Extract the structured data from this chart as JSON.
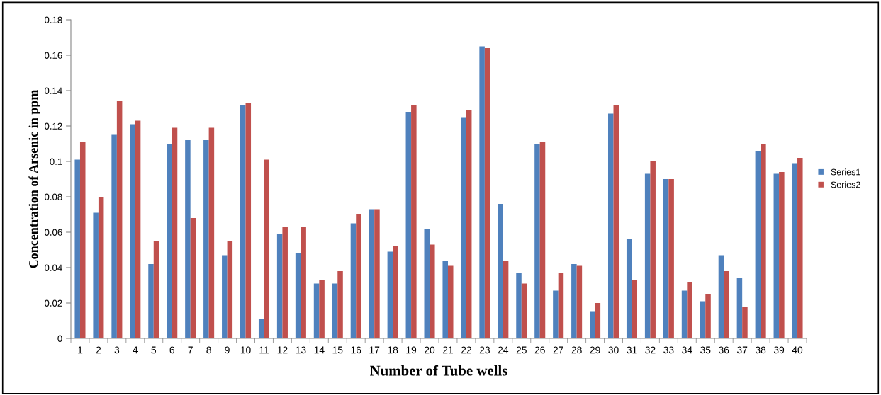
{
  "chart_data": {
    "type": "bar",
    "xlabel": "Number of Tube wells",
    "ylabel": "Concentration of Arsenic in ppm",
    "categories": [
      "1",
      "2",
      "3",
      "4",
      "5",
      "6",
      "7",
      "8",
      "9",
      "10",
      "11",
      "12",
      "13",
      "14",
      "15",
      "16",
      "17",
      "18",
      "19",
      "20",
      "21",
      "22",
      "23",
      "24",
      "25",
      "26",
      "27",
      "28",
      "29",
      "30",
      "31",
      "32",
      "33",
      "34",
      "35",
      "36",
      "37",
      "38",
      "39",
      "40"
    ],
    "series": [
      {
        "name": "Series1",
        "color": "#4f81bd",
        "values": [
          0.101,
          0.071,
          0.115,
          0.121,
          0.042,
          0.11,
          0.112,
          0.112,
          0.047,
          0.132,
          0.011,
          0.059,
          0.048,
          0.031,
          0.031,
          0.065,
          0.073,
          0.049,
          0.128,
          0.062,
          0.044,
          0.125,
          0.165,
          0.076,
          0.037,
          0.11,
          0.027,
          0.042,
          0.015,
          0.127,
          0.056,
          0.093,
          0.09,
          0.027,
          0.021,
          0.047,
          0.034,
          0.106,
          0.093,
          0.099
        ]
      },
      {
        "name": "Series2",
        "color": "#c0504d",
        "values": [
          0.111,
          0.08,
          0.134,
          0.123,
          0.055,
          0.119,
          0.068,
          0.119,
          0.055,
          0.133,
          0.101,
          0.063,
          0.063,
          0.033,
          0.038,
          0.07,
          0.073,
          0.052,
          0.132,
          0.053,
          0.041,
          0.129,
          0.164,
          0.044,
          0.031,
          0.111,
          0.037,
          0.041,
          0.02,
          0.132,
          0.033,
          0.1,
          0.09,
          0.032,
          0.025,
          0.038,
          0.018,
          0.11,
          0.094,
          0.102
        ]
      }
    ],
    "ylim": [
      0,
      0.18
    ],
    "yticks": [
      {
        "value": 0,
        "label": "0"
      },
      0.02,
      0.04,
      0.06,
      0.08,
      {
        "value": 0.1,
        "label": "0.1"
      },
      0.12,
      0.14,
      0.16,
      0.18
    ],
    "grid": false,
    "legend": "right"
  }
}
